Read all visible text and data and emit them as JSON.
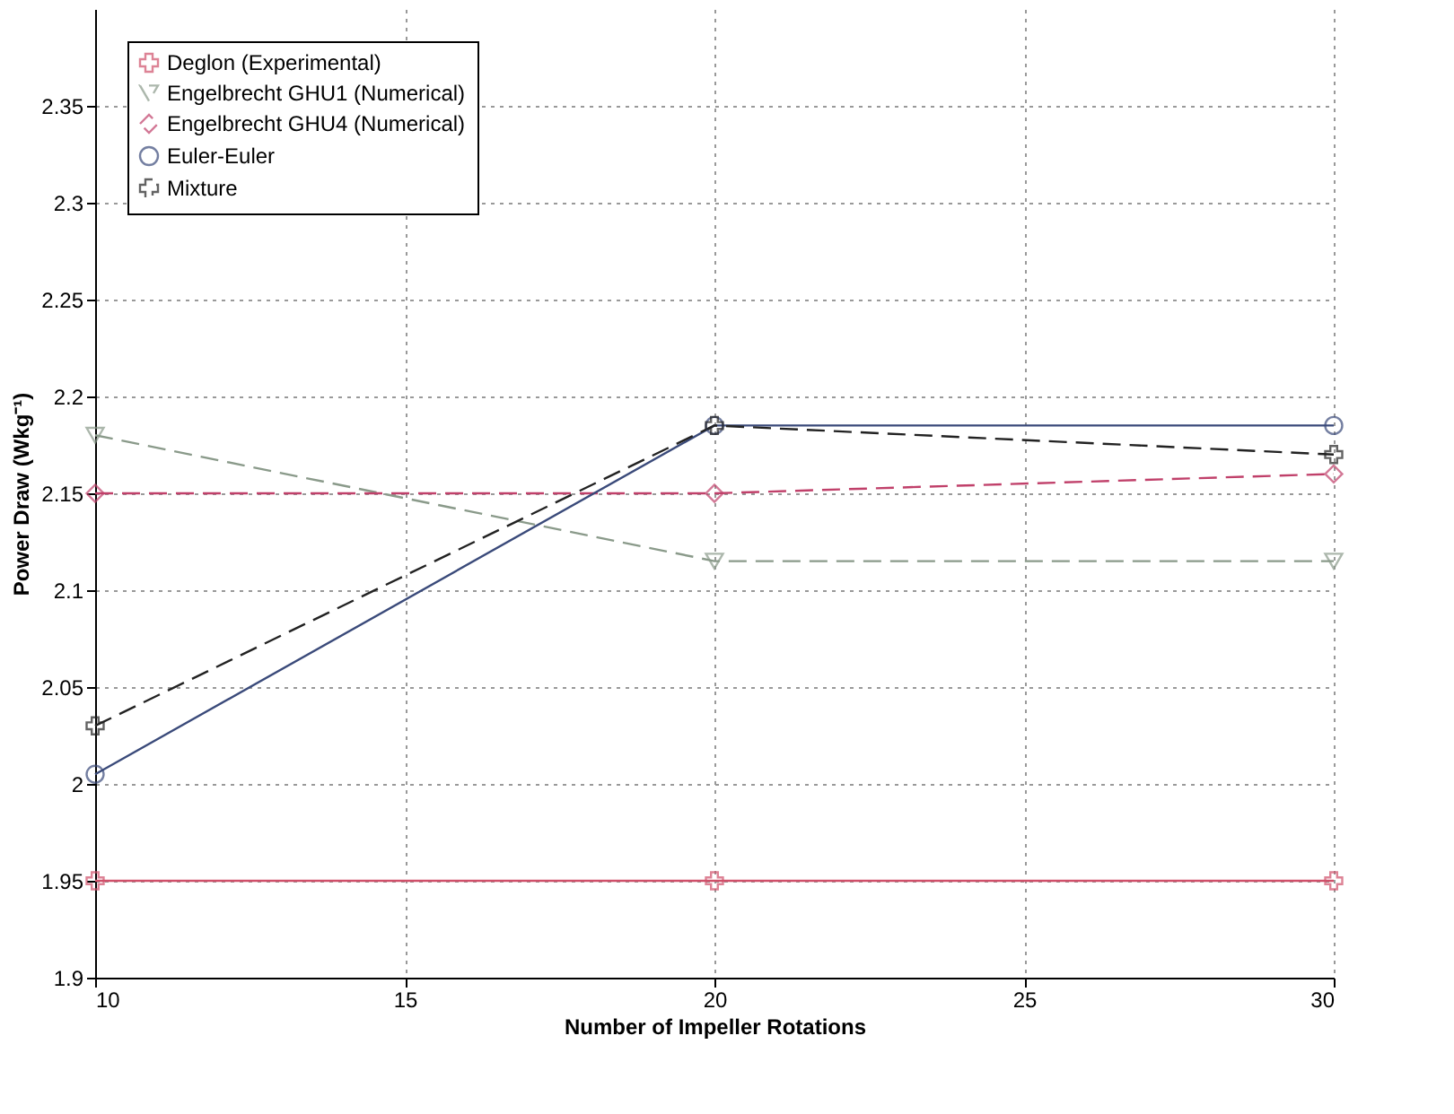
{
  "chart_data": {
    "type": "line",
    "xlabel": "Number of Impeller Rotations",
    "ylabel": "Power Draw (Wkg⁻¹)",
    "x": [
      10,
      20,
      30
    ],
    "xlim": [
      10,
      30
    ],
    "xticks": [
      10,
      15,
      20,
      25,
      30
    ],
    "ylim": [
      1.9,
      2.4
    ],
    "yticks": [
      1.9,
      1.95,
      2,
      2.05,
      2.1,
      2.15,
      2.2,
      2.25,
      2.3,
      2.35
    ],
    "grid": true,
    "legend": "top left",
    "series": [
      {
        "name": "Deglon (Experimental)",
        "color": "#d0506a",
        "values": [
          1.95,
          1.95,
          1.95
        ],
        "marker": "cross",
        "line_style": "solid"
      },
      {
        "name": "Engelbrecht GHU1 (Numerical)",
        "color": "#8a9a8a",
        "values": [
          2.18,
          2.115,
          2.115
        ],
        "marker": "triangle",
        "line_style": "dashed"
      },
      {
        "name": "Engelbrecht GHU4 (Numerical)",
        "color": "#c0406a",
        "values": [
          2.15,
          2.15,
          2.16
        ],
        "marker": "diamond",
        "line_style": "dashed"
      },
      {
        "name": "Euler-Euler",
        "color": "#3a4a7a",
        "values": [
          2.005,
          2.185,
          2.185
        ],
        "marker": "circle",
        "line_style": "solid"
      },
      {
        "name": "Mixture",
        "color": "#222222",
        "values": [
          2.03,
          2.185,
          2.17
        ],
        "marker": "cross",
        "line_style": "dashed"
      }
    ]
  }
}
